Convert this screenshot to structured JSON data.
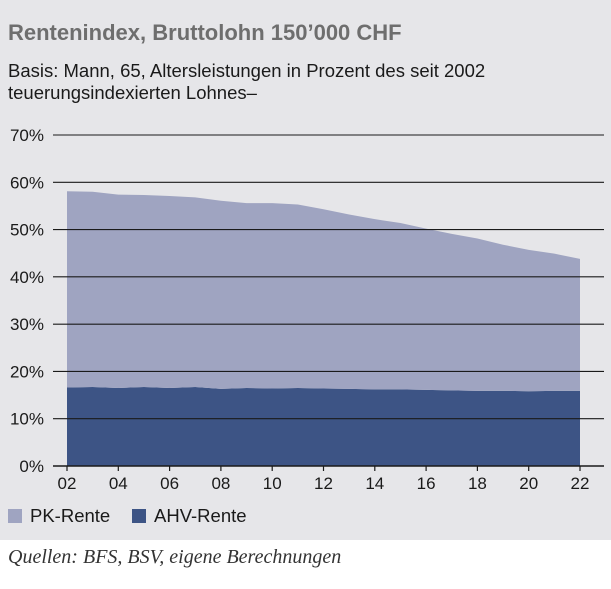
{
  "title": "Rentenindex, Bruttolohn 150’000 CHF",
  "subtitle_line1": "Basis: Mann, 65, Altersleistungen in Prozent des seit 2002",
  "subtitle_line2": "teuerungsindexierten Lohnes–",
  "source": "Quellen: BFS, BSV, eigene Berechnungen",
  "colors": {
    "pk": "#9fa4c1",
    "ahv": "#3d5485",
    "grid": "#1a1a1a"
  },
  "chart_data": {
    "type": "area",
    "stacked": true,
    "title": "Rentenindex, Bruttolohn 150’000 CHF",
    "x": [
      2,
      3,
      4,
      5,
      6,
      7,
      8,
      9,
      10,
      11,
      12,
      13,
      14,
      15,
      16,
      17,
      18,
      19,
      20,
      21,
      22
    ],
    "x_tick_labels": [
      "02",
      "04",
      "06",
      "08",
      "10",
      "12",
      "14",
      "16",
      "18",
      "20",
      "22"
    ],
    "x_tick_values": [
      2,
      4,
      6,
      8,
      10,
      12,
      14,
      16,
      18,
      20,
      22
    ],
    "ylim": [
      0,
      70
    ],
    "y_ticks": [
      0,
      10,
      20,
      30,
      40,
      50,
      60,
      70
    ],
    "y_tick_labels": [
      "0%",
      "10%",
      "20%",
      "30%",
      "40%",
      "50%",
      "60%",
      "70%"
    ],
    "grid": true,
    "legend_position": "bottom",
    "series": [
      {
        "name": "AHV-Rente",
        "color": "#3d5485",
        "values": [
          16.6,
          16.7,
          16.5,
          16.7,
          16.5,
          16.7,
          16.3,
          16.5,
          16.4,
          16.5,
          16.4,
          16.3,
          16.2,
          16.2,
          16.1,
          16.0,
          15.9,
          15.9,
          15.8,
          15.9,
          15.9
        ]
      },
      {
        "name": "PK-Rente",
        "color": "#9fa4c1",
        "values": [
          41.5,
          41.3,
          40.9,
          40.6,
          40.6,
          40.1,
          39.8,
          39.1,
          39.2,
          38.8,
          37.9,
          36.9,
          36.0,
          35.2,
          34.1,
          33.1,
          32.2,
          30.9,
          29.9,
          29.0,
          27.9
        ]
      }
    ]
  },
  "legend": [
    {
      "label": "PK-Rente",
      "color": "#9fa4c1"
    },
    {
      "label": "AHV-Rente",
      "color": "#3d5485"
    }
  ]
}
